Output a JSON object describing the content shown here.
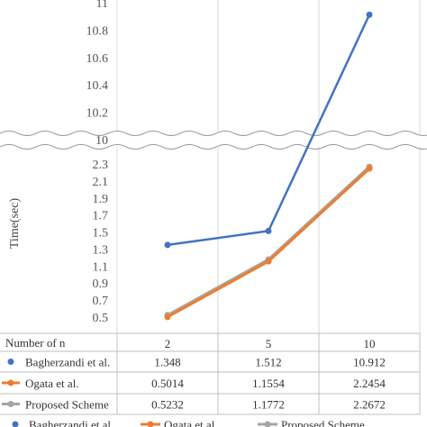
{
  "chart_data": {
    "type": "line",
    "ylabel": "Time(sec)",
    "x_header": "Number of n",
    "categories": [
      "2",
      "5",
      "10"
    ],
    "y_axis_break": true,
    "y_lower_range": [
      0.5,
      2.3
    ],
    "y_upper_range": [
      10.0,
      11.0
    ],
    "y_ticks_lower": [
      "0.5",
      "0.7",
      "0.9",
      "1.1",
      "1.3",
      "1.5",
      "1.7",
      "1.9",
      "2.1",
      "2.3"
    ],
    "y_ticks_upper": [
      "10",
      "10.2",
      "10.4",
      "10.6",
      "10.8",
      "11"
    ],
    "grid": "vertical",
    "legend": "bottom",
    "series": [
      {
        "name": "Bagherzandi et al.",
        "values": [
          1.348,
          1.512,
          10.912
        ],
        "labels": [
          "1.348",
          "1.512",
          "10.912"
        ],
        "color": "#4472c4",
        "marker": "circle"
      },
      {
        "name": "Ogata et al.",
        "values": [
          0.5014,
          1.1554,
          2.2454
        ],
        "labels": [
          "0.5014",
          "1.1554",
          "2.2454"
        ],
        "color": "#ed7d31",
        "marker": "circle"
      },
      {
        "name": "Proposed Scheme",
        "values": [
          0.5232,
          1.1772,
          2.2672
        ],
        "labels": [
          "0.5232",
          "1.1772",
          "2.2672"
        ],
        "color": "#a5a5a5",
        "marker": "circle"
      }
    ],
    "legend_entries": [
      "Bagherzandi et al.",
      "Ogata et al.",
      "Proposed Scheme"
    ]
  }
}
